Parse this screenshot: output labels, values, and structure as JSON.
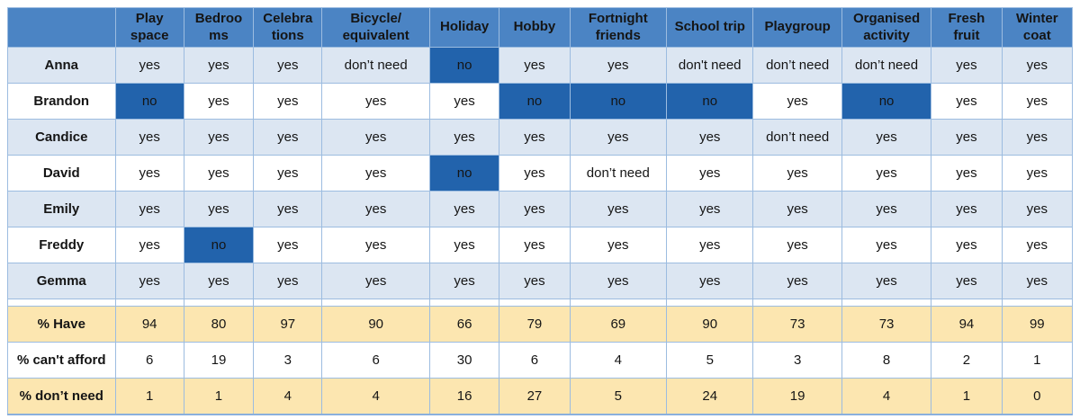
{
  "colors": {
    "header_bg": "#4B84C4",
    "header_text": "#ffffff",
    "band_blue": "#DCE6F2",
    "band_white": "#ffffff",
    "band_yellow": "#FCE6B0",
    "highlight_no_bg": "#2263AC",
    "grid_border": "#9CBCE0"
  },
  "table": {
    "corner_label": "",
    "columns": [
      "Play\nspace",
      "Bedroo\nms",
      "Celebra\ntions",
      "Bicycle/\nequivalent",
      "Holiday",
      "Hobby",
      "Fortnight\nfriends",
      "School trip",
      "Playgroup",
      "Organised\nactivity",
      "Fresh\nfruit",
      "Winter\ncoat"
    ],
    "rows": [
      {
        "name": "Anna",
        "band": "blue",
        "values": [
          "yes",
          "yes",
          "yes",
          "don’t need",
          "no",
          "yes",
          "yes",
          "don't need",
          "don’t need",
          "don’t need",
          "yes",
          "yes"
        ]
      },
      {
        "name": "Brandon",
        "band": "white",
        "values": [
          "no",
          "yes",
          "yes",
          "yes",
          "yes",
          "no",
          "no",
          "no",
          "yes",
          "no",
          "yes",
          "yes"
        ]
      },
      {
        "name": "Candice",
        "band": "blue",
        "values": [
          "yes",
          "yes",
          "yes",
          "yes",
          "yes",
          "yes",
          "yes",
          "yes",
          "don’t need",
          "yes",
          "yes",
          "yes"
        ]
      },
      {
        "name": "David",
        "band": "white",
        "values": [
          "yes",
          "yes",
          "yes",
          "yes",
          "no",
          "yes",
          "don’t need",
          "yes",
          "yes",
          "yes",
          "yes",
          "yes"
        ]
      },
      {
        "name": "Emily",
        "band": "blue",
        "values": [
          "yes",
          "yes",
          "yes",
          "yes",
          "yes",
          "yes",
          "yes",
          "yes",
          "yes",
          "yes",
          "yes",
          "yes"
        ]
      },
      {
        "name": "Freddy",
        "band": "white",
        "values": [
          "yes",
          "no",
          "yes",
          "yes",
          "yes",
          "yes",
          "yes",
          "yes",
          "yes",
          "yes",
          "yes",
          "yes"
        ]
      },
      {
        "name": "Gemma",
        "band": "blue",
        "values": [
          "yes",
          "yes",
          "yes",
          "yes",
          "yes",
          "yes",
          "yes",
          "yes",
          "yes",
          "yes",
          "yes",
          "yes"
        ]
      }
    ],
    "stats": [
      {
        "label": "% Have",
        "band": "yellow",
        "values": [
          94,
          80,
          97,
          90,
          66,
          79,
          69,
          90,
          73,
          73,
          94,
          99
        ]
      },
      {
        "label": "% can't afford",
        "band": "white",
        "values": [
          6,
          19,
          3,
          6,
          30,
          6,
          4,
          5,
          3,
          8,
          2,
          1
        ]
      },
      {
        "label": "% don’t need",
        "band": "yellow",
        "values": [
          1,
          1,
          4,
          4,
          16,
          27,
          5,
          24,
          19,
          4,
          1,
          0
        ]
      }
    ]
  }
}
